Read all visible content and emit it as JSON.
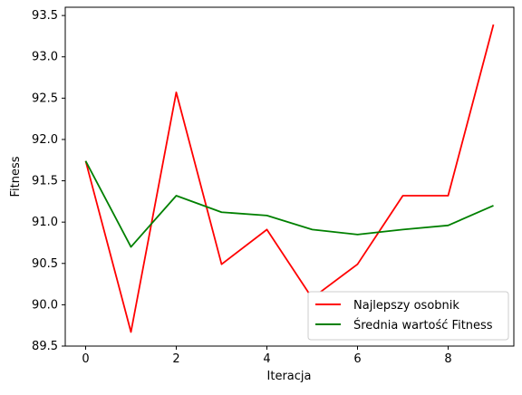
{
  "chart_data": {
    "type": "line",
    "title": "",
    "xlabel": "Iteracja",
    "ylabel": "Fitness",
    "xlim": [
      -0.45,
      9.45
    ],
    "ylim": [
      89.5,
      93.6
    ],
    "xticks": [
      0,
      2,
      4,
      6,
      8
    ],
    "yticks": [
      89.5,
      90.0,
      90.5,
      91.0,
      91.5,
      92.0,
      92.5,
      93.0,
      93.5
    ],
    "ytick_labels": [
      "89.5",
      "90.0",
      "90.5",
      "91.0",
      "91.5",
      "92.0",
      "92.5",
      "93.0",
      "93.5"
    ],
    "x": [
      0,
      1,
      2,
      3,
      4,
      5,
      6,
      7,
      8,
      9
    ],
    "series": [
      {
        "name": "Najlepszy osobnik",
        "color": "#ff0000",
        "values": [
          91.74,
          89.67,
          92.57,
          90.49,
          90.91,
          90.08,
          90.49,
          91.32,
          91.32,
          93.39
        ]
      },
      {
        "name": "Średnia wartość Fitness",
        "color": "#008000",
        "values": [
          91.74,
          90.7,
          91.32,
          91.12,
          91.08,
          90.91,
          90.85,
          90.91,
          90.96,
          91.2
        ]
      }
    ],
    "grid": false,
    "legend_position": "lower-right"
  }
}
